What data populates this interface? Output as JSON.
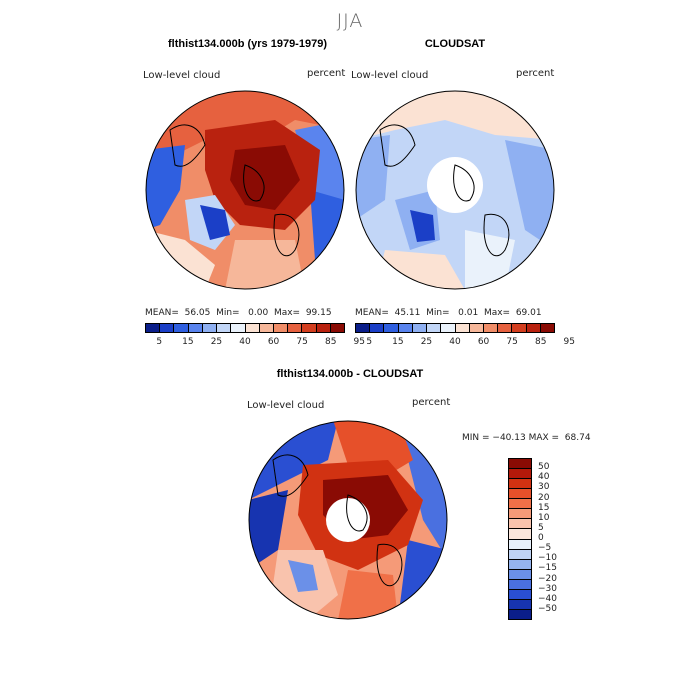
{
  "season": "JJA",
  "panels": [
    {
      "title": "flthist134.000b (yrs 1979-1979)",
      "variable": "Low-level cloud",
      "units": "percent",
      "stats": "MEAN=  56.05  Min=   0.00  Max=  99.15"
    },
    {
      "title": "CLOUDSAT",
      "variable": "Low-level cloud",
      "units": "percent",
      "stats": "MEAN=  45.11  Min=   0.01  Max=  69.01"
    }
  ],
  "colorbar_top": {
    "ticks": [
      "5",
      "15",
      "25",
      "40",
      "60",
      "75",
      "85",
      "95"
    ],
    "colors": [
      "#0b1e8a",
      "#1b3fc7",
      "#2f5fe0",
      "#5a84ee",
      "#8fb0f2",
      "#c2d6f7",
      "#eaf2fb",
      "#fbe2d3",
      "#f6b79a",
      "#f08d68",
      "#e6613f",
      "#d33e1f",
      "#b9220f",
      "#8a0b04"
    ]
  },
  "diff_panel": {
    "title": "flthist134.000b - CLOUDSAT",
    "variable": "Low-level cloud",
    "units": "percent",
    "stats": "MIN = −40.13 MAX =  68.74"
  },
  "colorbar_diff": {
    "ticks": [
      "50",
      "40",
      "30",
      "20",
      "15",
      "10",
      "5",
      "0",
      "−5",
      "−10",
      "−15",
      "−20",
      "−30",
      "−40",
      "−50"
    ],
    "colors": [
      "#8a0b04",
      "#b3190a",
      "#d13212",
      "#e6502a",
      "#f07048",
      "#f59a78",
      "#f9c3ad",
      "#fbe6dc",
      "#e7f0fb",
      "#bfd3f5",
      "#95b4ef",
      "#6b90e8",
      "#4a70e0",
      "#2a4fd2",
      "#1734b0",
      "#0b1e8a"
    ]
  },
  "colors": {
    "land_outline": "#000000",
    "missing": "#ffffff"
  }
}
